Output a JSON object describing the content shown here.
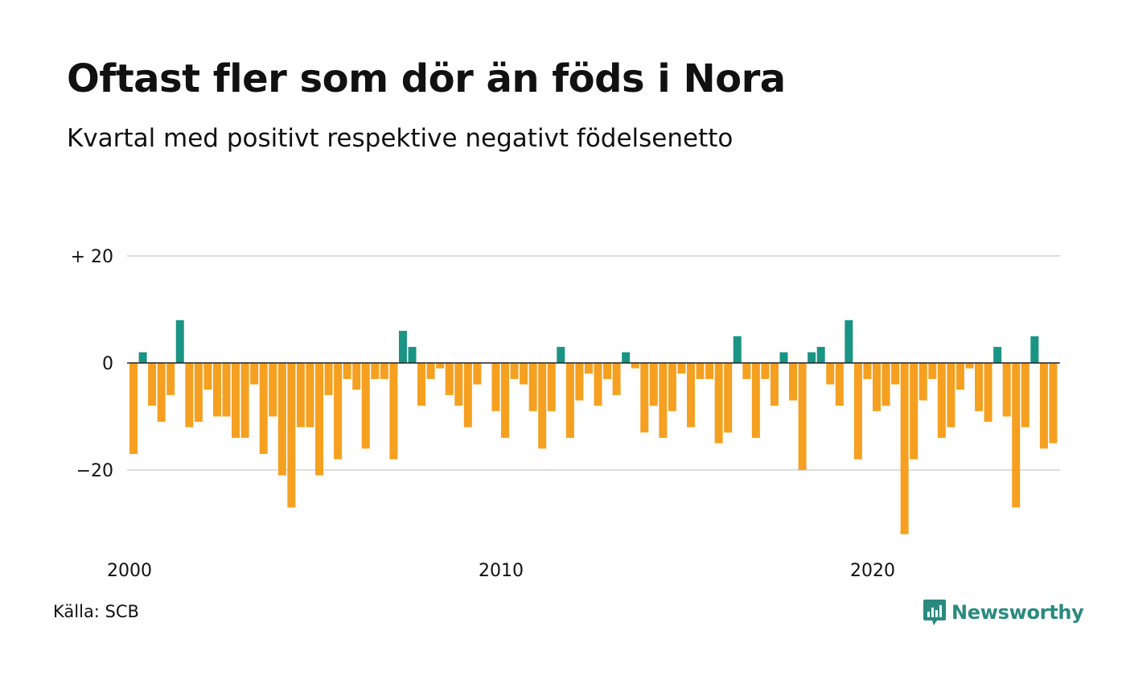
{
  "title": "Oftast fler som dör än föds i Nora",
  "subtitle": "Kvartal med positivt respektive negativt födelsenetto",
  "source": "Källa: SCB",
  "brand": {
    "name": "Newsworthy",
    "icon": "newsworthy-logo-icon",
    "color": "#2a8a7f"
  },
  "colors": {
    "positive": "#1a9484",
    "negative": "#f5a020",
    "grid": "#dddddd",
    "zero_line": "#222222"
  },
  "chart_data": {
    "type": "bar",
    "title": "Oftast fler som dör än föds i Nora",
    "subtitle": "Kvartal med positivt respektive negativt födelsenetto",
    "xlabel": "",
    "ylabel": "",
    "ylim": [
      -32,
      20
    ],
    "y_ticks": [
      {
        "value": 20,
        "label": "+ 20"
      },
      {
        "value": 0,
        "label": "0"
      },
      {
        "value": -20,
        "label": "−20"
      }
    ],
    "x_ticks": [
      {
        "value": 2000,
        "label": "2000"
      },
      {
        "value": 2010,
        "label": "2010"
      },
      {
        "value": 2020,
        "label": "2020"
      }
    ],
    "start_year": 2000,
    "periods_per_year": 4,
    "grid": true,
    "values": [
      -17,
      2,
      -8,
      -11,
      -6,
      8,
      -12,
      -11,
      -5,
      -10,
      -10,
      -14,
      -14,
      -4,
      -17,
      -10,
      -21,
      -27,
      -12,
      -12,
      -21,
      -6,
      -18,
      -3,
      -5,
      -16,
      -3,
      -3,
      -18,
      6,
      3,
      -8,
      -3,
      -1,
      -6,
      -8,
      -12,
      -4,
      0,
      -9,
      -14,
      -3,
      -4,
      -9,
      -16,
      -9,
      3,
      -14,
      -7,
      -2,
      -8,
      -3,
      -6,
      2,
      -1,
      -13,
      -8,
      -14,
      -9,
      -2,
      -12,
      -3,
      -3,
      -15,
      -13,
      5,
      -3,
      -14,
      -3,
      -8,
      2,
      -7,
      -20,
      2,
      3,
      -4,
      -8,
      8,
      -18,
      -3,
      -9,
      -8,
      -4,
      -32,
      -18,
      -7,
      -3,
      -14,
      -12,
      -5,
      -1,
      -9,
      -11,
      3,
      -10,
      -27,
      -12,
      5,
      -16,
      -15
    ]
  }
}
